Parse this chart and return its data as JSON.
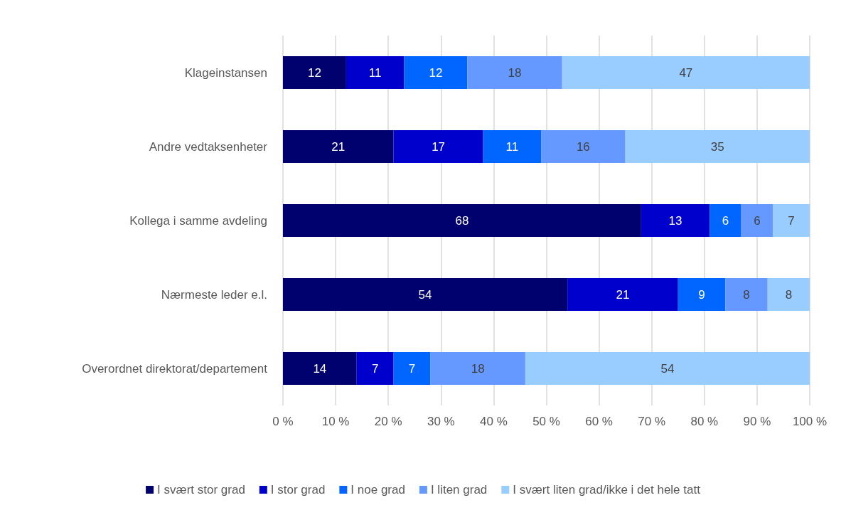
{
  "chart_data": {
    "type": "bar",
    "orientation": "horizontal",
    "stacked": true,
    "categories": [
      "Klageinstansen",
      "Andre vedtaksenheter",
      "Kollega i samme avdeling",
      "Nærmeste leder e.l.",
      "Overordnet direktorat/departement"
    ],
    "series": [
      {
        "name": "I svært stor grad",
        "color": "#00006e",
        "values": [
          12,
          21,
          68,
          54,
          14
        ]
      },
      {
        "name": "I stor grad",
        "color": "#0000cc",
        "values": [
          11,
          17,
          13,
          21,
          7
        ]
      },
      {
        "name": "I noe grad",
        "color": "#0066ff",
        "values": [
          12,
          11,
          6,
          9,
          7
        ]
      },
      {
        "name": "I liten grad",
        "color": "#6699ff",
        "values": [
          18,
          16,
          6,
          8,
          18
        ]
      },
      {
        "name": "I svært liten grad/ikke i det hele tatt",
        "color": "#99ccff",
        "values": [
          47,
          35,
          7,
          8,
          54
        ]
      }
    ],
    "xlim": [
      0,
      100
    ],
    "xticks": [
      {
        "value": 0,
        "label": "0 %"
      },
      {
        "value": 10,
        "label": "10 %"
      },
      {
        "value": 20,
        "label": "20 %"
      },
      {
        "value": 30,
        "label": "30 %"
      },
      {
        "value": 40,
        "label": "40 %"
      },
      {
        "value": 50,
        "label": "50 %"
      },
      {
        "value": 60,
        "label": "60 %"
      },
      {
        "value": 70,
        "label": "70 %"
      },
      {
        "value": 80,
        "label": "80 %"
      },
      {
        "value": 90,
        "label": "90 %"
      },
      {
        "value": 100,
        "label": "100 %"
      }
    ],
    "grid": "x",
    "legend": "bottom",
    "data_labels": true
  }
}
